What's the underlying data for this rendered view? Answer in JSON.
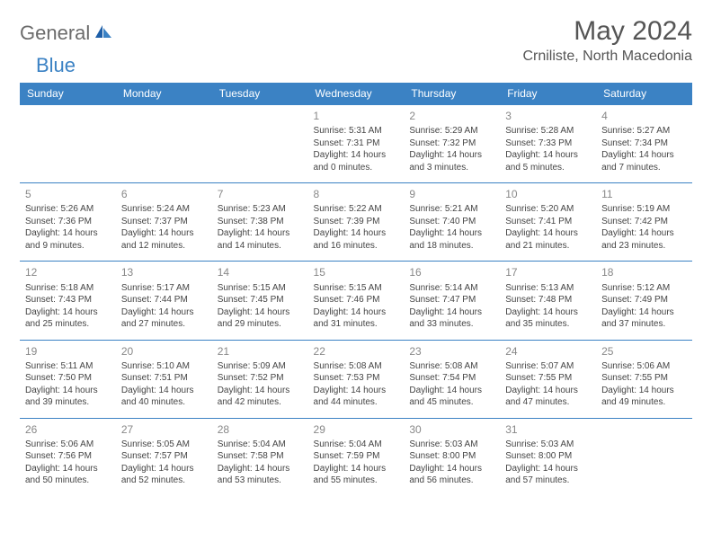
{
  "brand": {
    "part1": "General",
    "part2": "Blue"
  },
  "header": {
    "title": "May 2024",
    "location": "Crniliste, North Macedonia"
  },
  "colors": {
    "accent": "#3b82c4",
    "text": "#444444",
    "muted": "#888888",
    "bg": "#ffffff"
  },
  "dayNames": [
    "Sunday",
    "Monday",
    "Tuesday",
    "Wednesday",
    "Thursday",
    "Friday",
    "Saturday"
  ],
  "weeks": [
    [
      null,
      null,
      null,
      {
        "n": "1",
        "sr": "5:31 AM",
        "ss": "7:31 PM",
        "dl": "14 hours and 0 minutes."
      },
      {
        "n": "2",
        "sr": "5:29 AM",
        "ss": "7:32 PM",
        "dl": "14 hours and 3 minutes."
      },
      {
        "n": "3",
        "sr": "5:28 AM",
        "ss": "7:33 PM",
        "dl": "14 hours and 5 minutes."
      },
      {
        "n": "4",
        "sr": "5:27 AM",
        "ss": "7:34 PM",
        "dl": "14 hours and 7 minutes."
      }
    ],
    [
      {
        "n": "5",
        "sr": "5:26 AM",
        "ss": "7:36 PM",
        "dl": "14 hours and 9 minutes."
      },
      {
        "n": "6",
        "sr": "5:24 AM",
        "ss": "7:37 PM",
        "dl": "14 hours and 12 minutes."
      },
      {
        "n": "7",
        "sr": "5:23 AM",
        "ss": "7:38 PM",
        "dl": "14 hours and 14 minutes."
      },
      {
        "n": "8",
        "sr": "5:22 AM",
        "ss": "7:39 PM",
        "dl": "14 hours and 16 minutes."
      },
      {
        "n": "9",
        "sr": "5:21 AM",
        "ss": "7:40 PM",
        "dl": "14 hours and 18 minutes."
      },
      {
        "n": "10",
        "sr": "5:20 AM",
        "ss": "7:41 PM",
        "dl": "14 hours and 21 minutes."
      },
      {
        "n": "11",
        "sr": "5:19 AM",
        "ss": "7:42 PM",
        "dl": "14 hours and 23 minutes."
      }
    ],
    [
      {
        "n": "12",
        "sr": "5:18 AM",
        "ss": "7:43 PM",
        "dl": "14 hours and 25 minutes."
      },
      {
        "n": "13",
        "sr": "5:17 AM",
        "ss": "7:44 PM",
        "dl": "14 hours and 27 minutes."
      },
      {
        "n": "14",
        "sr": "5:15 AM",
        "ss": "7:45 PM",
        "dl": "14 hours and 29 minutes."
      },
      {
        "n": "15",
        "sr": "5:15 AM",
        "ss": "7:46 PM",
        "dl": "14 hours and 31 minutes."
      },
      {
        "n": "16",
        "sr": "5:14 AM",
        "ss": "7:47 PM",
        "dl": "14 hours and 33 minutes."
      },
      {
        "n": "17",
        "sr": "5:13 AM",
        "ss": "7:48 PM",
        "dl": "14 hours and 35 minutes."
      },
      {
        "n": "18",
        "sr": "5:12 AM",
        "ss": "7:49 PM",
        "dl": "14 hours and 37 minutes."
      }
    ],
    [
      {
        "n": "19",
        "sr": "5:11 AM",
        "ss": "7:50 PM",
        "dl": "14 hours and 39 minutes."
      },
      {
        "n": "20",
        "sr": "5:10 AM",
        "ss": "7:51 PM",
        "dl": "14 hours and 40 minutes."
      },
      {
        "n": "21",
        "sr": "5:09 AM",
        "ss": "7:52 PM",
        "dl": "14 hours and 42 minutes."
      },
      {
        "n": "22",
        "sr": "5:08 AM",
        "ss": "7:53 PM",
        "dl": "14 hours and 44 minutes."
      },
      {
        "n": "23",
        "sr": "5:08 AM",
        "ss": "7:54 PM",
        "dl": "14 hours and 45 minutes."
      },
      {
        "n": "24",
        "sr": "5:07 AM",
        "ss": "7:55 PM",
        "dl": "14 hours and 47 minutes."
      },
      {
        "n": "25",
        "sr": "5:06 AM",
        "ss": "7:55 PM",
        "dl": "14 hours and 49 minutes."
      }
    ],
    [
      {
        "n": "26",
        "sr": "5:06 AM",
        "ss": "7:56 PM",
        "dl": "14 hours and 50 minutes."
      },
      {
        "n": "27",
        "sr": "5:05 AM",
        "ss": "7:57 PM",
        "dl": "14 hours and 52 minutes."
      },
      {
        "n": "28",
        "sr": "5:04 AM",
        "ss": "7:58 PM",
        "dl": "14 hours and 53 minutes."
      },
      {
        "n": "29",
        "sr": "5:04 AM",
        "ss": "7:59 PM",
        "dl": "14 hours and 55 minutes."
      },
      {
        "n": "30",
        "sr": "5:03 AM",
        "ss": "8:00 PM",
        "dl": "14 hours and 56 minutes."
      },
      {
        "n": "31",
        "sr": "5:03 AM",
        "ss": "8:00 PM",
        "dl": "14 hours and 57 minutes."
      },
      null
    ]
  ],
  "labels": {
    "sunrise": "Sunrise:",
    "sunset": "Sunset:",
    "daylight": "Daylight:"
  }
}
